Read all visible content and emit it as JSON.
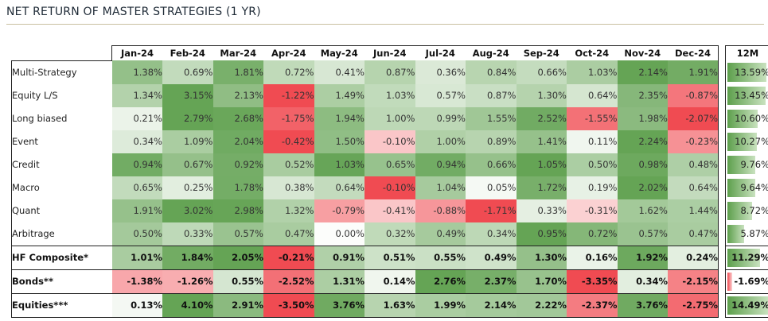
{
  "title": "NET RETURN OF MASTER STRATEGIES (1 YR)",
  "chart_data": {
    "type": "heatmap",
    "title": "NET RETURN OF MASTER STRATEGIES (1 YR)",
    "columns": [
      "Jan-24",
      "Feb-24",
      "Mar-24",
      "Apr-24",
      "May-24",
      "Jun-24",
      "Jul-24",
      "Aug-24",
      "Sep-24",
      "Oct-24",
      "Nov-24",
      "Dec-24"
    ],
    "total_column": "12M",
    "rows": [
      {
        "name": "Multi-Strategy",
        "values": [
          "1.38%",
          "0.69%",
          "1.81%",
          "0.72%",
          "0.41%",
          "0.87%",
          "0.36%",
          "0.84%",
          "0.66%",
          "1.03%",
          "2.14%",
          "1.91%"
        ],
        "total": "13.59%",
        "bold": false
      },
      {
        "name": "Equity L/S",
        "values": [
          "1.34%",
          "3.15%",
          "2.13%",
          "-1.22%",
          "1.49%",
          "1.03%",
          "0.57%",
          "0.87%",
          "1.30%",
          "0.64%",
          "2.35%",
          "-0.87%"
        ],
        "total": "13.45%",
        "bold": false
      },
      {
        "name": "Long biased",
        "values": [
          "0.21%",
          "2.79%",
          "2.68%",
          "-1.75%",
          "1.94%",
          "1.00%",
          "0.99%",
          "1.55%",
          "2.52%",
          "-1.55%",
          "1.98%",
          "-2.07%"
        ],
        "total": "10.60%",
        "bold": false
      },
      {
        "name": "Event",
        "values": [
          "0.34%",
          "1.09%",
          "2.04%",
          "-0.42%",
          "1.50%",
          "-0.10%",
          "1.00%",
          "0.89%",
          "1.41%",
          "0.11%",
          "2.24%",
          "-0.23%"
        ],
        "total": "10.27%",
        "bold": false
      },
      {
        "name": "Credit",
        "values": [
          "0.94%",
          "0.67%",
          "0.92%",
          "0.52%",
          "1.03%",
          "0.65%",
          "0.94%",
          "0.66%",
          "1.05%",
          "0.50%",
          "0.98%",
          "0.48%"
        ],
        "total": "9.76%",
        "bold": false
      },
      {
        "name": "Macro",
        "values": [
          "0.65%",
          "0.25%",
          "1.78%",
          "0.38%",
          "0.64%",
          "-0.10%",
          "1.04%",
          "0.05%",
          "1.72%",
          "0.19%",
          "2.02%",
          "0.64%"
        ],
        "total": "9.64%",
        "bold": false
      },
      {
        "name": "Quant",
        "values": [
          "1.91%",
          "3.02%",
          "2.98%",
          "1.32%",
          "-0.79%",
          "-0.41%",
          "-0.88%",
          "-1.71%",
          "0.33%",
          "-0.31%",
          "1.62%",
          "1.44%"
        ],
        "total": "8.72%",
        "bold": false
      },
      {
        "name": "Arbitrage",
        "values": [
          "0.50%",
          "0.33%",
          "0.57%",
          "0.47%",
          "0.00%",
          "0.32%",
          "0.49%",
          "0.34%",
          "0.95%",
          "0.72%",
          "0.57%",
          "0.47%"
        ],
        "total": "5.87%",
        "bold": false
      },
      {
        "name": "HF Composite*",
        "values": [
          "1.01%",
          "1.84%",
          "2.05%",
          "-0.21%",
          "0.91%",
          "0.51%",
          "0.55%",
          "0.49%",
          "1.30%",
          "0.16%",
          "1.92%",
          "0.24%"
        ],
        "total": "11.29%",
        "bold": true
      },
      {
        "name": "Bonds**",
        "values": [
          "-1.38%",
          "-1.26%",
          "0.55%",
          "-2.52%",
          "1.31%",
          "0.14%",
          "2.76%",
          "2.37%",
          "1.70%",
          "-3.35%",
          "0.34%",
          "-2.15%"
        ],
        "total": "-1.69%",
        "bold": true
      },
      {
        "name": "Equities***",
        "values": [
          "0.13%",
          "4.10%",
          "2.91%",
          "-3.50%",
          "3.76%",
          "1.63%",
          "1.99%",
          "2.14%",
          "2.22%",
          "-2.37%",
          "3.76%",
          "-2.75%"
        ],
        "total": "14.49%",
        "bold": true
      }
    ],
    "colors": {
      "positive": "#5b9e4a",
      "negative": "#f0474e",
      "neutral": "#ffffff"
    }
  }
}
